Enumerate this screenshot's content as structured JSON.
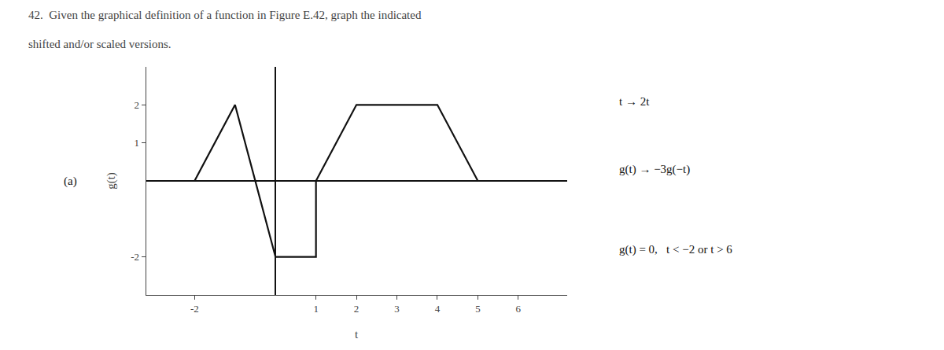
{
  "chart_data": {
    "type": "line",
    "title": "42.  Given the graphical definition of a function in Figure E.42, graph the indicated",
    "subtitle": "       shifted and/or scaled versions.",
    "x_label": "t",
    "y_label": "g(t)",
    "x": [
      -2,
      -1,
      0,
      1,
      1,
      2,
      4,
      5,
      6
    ],
    "values": [
      0,
      2,
      -2,
      -2,
      0,
      2,
      2,
      0,
      0
    ],
    "color": "#111111",
    "xlim": [
      -3.2,
      7.2
    ],
    "ylim": [
      -3.0,
      3.0
    ],
    "xticks": [
      -2,
      1,
      2,
      3,
      4,
      5,
      6
    ],
    "yticks": [
      -2,
      1,
      2
    ],
    "grid": false,
    "annotations": [
      "(a)",
      "t → 2t",
      "g(t) → −3g(−t)",
      "g(t) = 0,   t < −2 or t > 6"
    ]
  }
}
